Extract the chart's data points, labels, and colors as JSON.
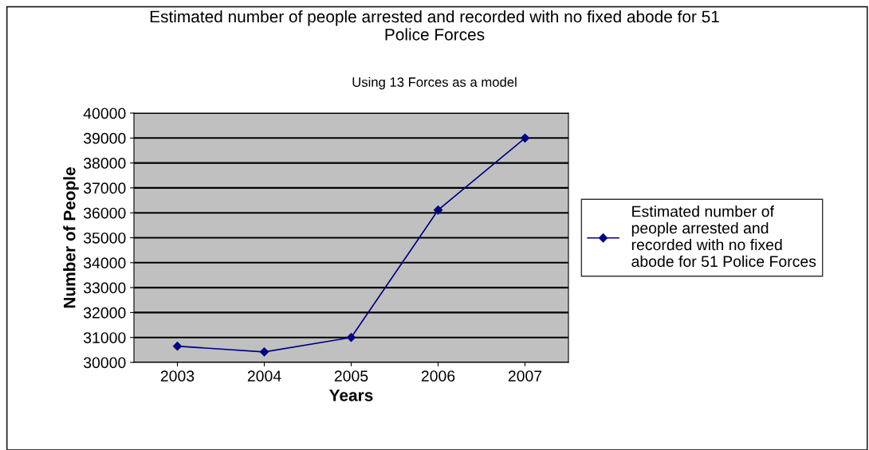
{
  "chart_data": {
    "type": "line",
    "title": "Estimated number of people arrested and recorded with no fixed abode for 51\nPolice Forces",
    "subtitle": "Using 13 Forces as a model",
    "xlabel": "Years",
    "ylabel": "Number of People",
    "categories": [
      "2003",
      "2004",
      "2005",
      "2006",
      "2007"
    ],
    "series": [
      {
        "name": "Estimated number of\npeople arrested and\nrecorded with no fixed\nabode for 51 Police Forces",
        "color": "#000080",
        "values": [
          30650,
          30420,
          31000,
          36110,
          39000
        ]
      }
    ],
    "ylim": [
      30000,
      40000
    ],
    "yticks": [
      30000,
      31000,
      32000,
      33000,
      34000,
      35000,
      36000,
      37000,
      38000,
      39000,
      40000
    ],
    "grid": "y",
    "legend": "right",
    "marker": "diamond",
    "line_style": "solid"
  }
}
